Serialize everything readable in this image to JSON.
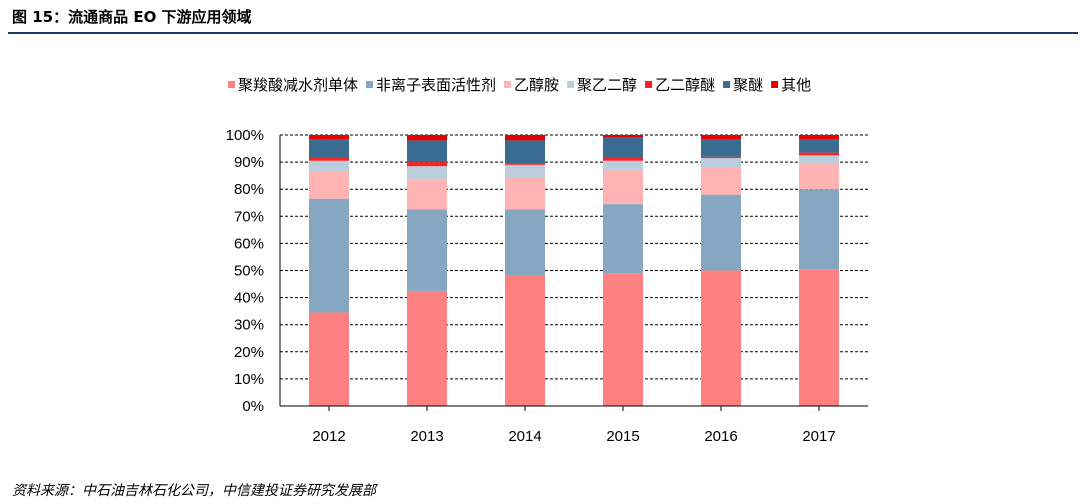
{
  "title": "图 15：流通商品 EO 下游应用领域",
  "source": "资料来源：中石油吉林石化公司，中信建投证券研究发展部",
  "chart_data": {
    "type": "bar",
    "stacked": true,
    "percent": true,
    "categories": [
      "2012",
      "2013",
      "2014",
      "2015",
      "2016",
      "2017"
    ],
    "ylim": [
      0,
      100
    ],
    "yticks": [
      "0%",
      "10%",
      "20%",
      "30%",
      "40%",
      "50%",
      "60%",
      "70%",
      "80%",
      "90%",
      "100%"
    ],
    "gridlines": "dashed",
    "legend_position": "top",
    "series": [
      {
        "name": "聚羧酸减水剂单体",
        "color": "#ff8080",
        "values": [
          34.5,
          42.5,
          48,
          49,
          50,
          50.5
        ]
      },
      {
        "name": "非离子表面活性剂",
        "color": "#85a7c1",
        "values": [
          42,
          30,
          24.5,
          25.5,
          28,
          29.5
        ]
      },
      {
        "name": "乙醇胺",
        "color": "#ffb3b3",
        "values": [
          10,
          11,
          12,
          12.5,
          10,
          9.5
        ]
      },
      {
        "name": "聚乙二醇",
        "color": "#bccddd",
        "values": [
          4,
          5,
          4.5,
          3.5,
          3.5,
          3
        ]
      },
      {
        "name": "乙二醇醚",
        "color": "#ff2020",
        "values": [
          1,
          1.5,
          0.5,
          1,
          0.5,
          1
        ]
      },
      {
        "name": "聚醚",
        "color": "#3a6b91",
        "values": [
          7,
          8,
          8.5,
          7.5,
          6.5,
          5
        ]
      },
      {
        "name": "其他",
        "color": "#e80000",
        "values": [
          1.5,
          2,
          2,
          1,
          1.5,
          1.5
        ]
      }
    ]
  }
}
